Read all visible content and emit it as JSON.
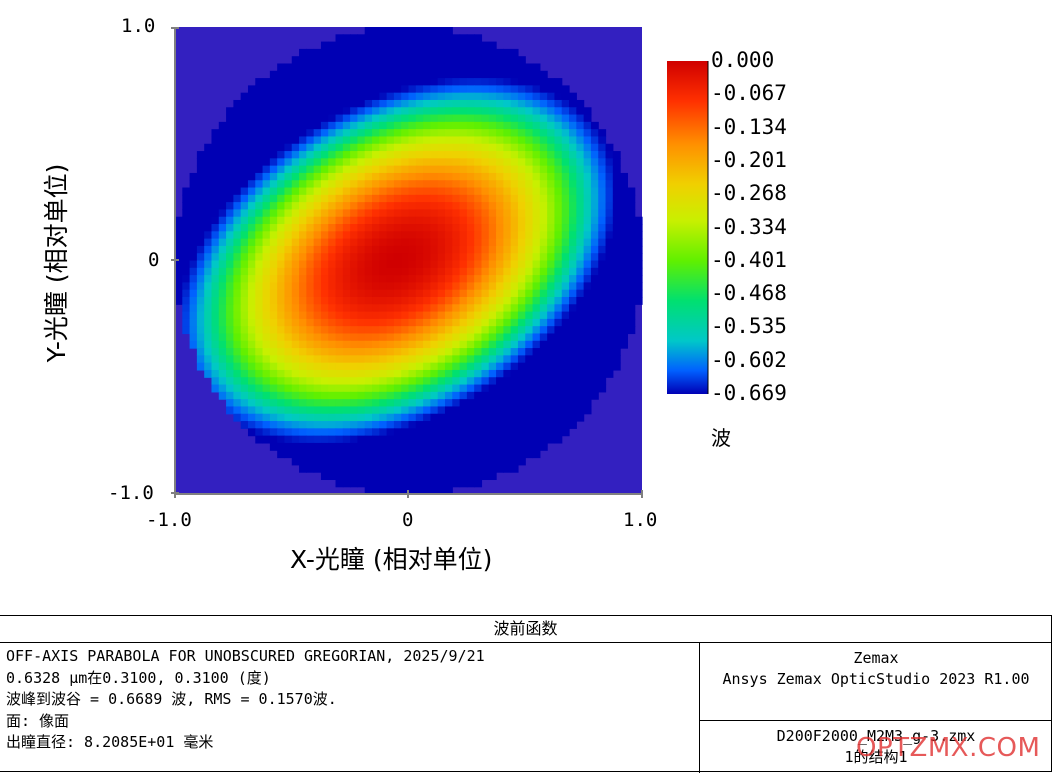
{
  "chart_data": {
    "type": "heatmap",
    "title": "波前函数",
    "xlabel": "X-光瞳 (相对单位)",
    "ylabel": "Y-光瞳 (相对单位)",
    "xlim": [
      -1.0,
      1.0
    ],
    "ylim": [
      -1.0,
      1.0
    ],
    "x_tick_labels": [
      "-1.0",
      "0",
      "1.0"
    ],
    "y_tick_labels": [
      "1.0",
      "0",
      "-1.0"
    ],
    "colorbar_unit": "波",
    "colorbar_labels": [
      "0.000",
      "-0.067",
      "-0.134",
      "-0.201",
      "-0.268",
      "-0.334",
      "-0.401",
      "-0.468",
      "-0.535",
      "-0.602",
      "-0.669"
    ],
    "value_range": [
      -0.669,
      0.0
    ],
    "peak_to_valley_waves": 0.6689,
    "rms_waves": 0.157,
    "pupil_shape": "circular",
    "background_color": "#3320c0",
    "colormap": [
      "#0000b4",
      "#0060ff",
      "#00c8c8",
      "#00e070",
      "#60f000",
      "#c8f000",
      "#f0d000",
      "#ff9000",
      "#ff3000",
      "#d00000"
    ]
  },
  "info": {
    "title": "波前函数",
    "left_lines": [
      "OFF-AXIS PARABOLA FOR UNOBSCURED GREGORIAN, 2025/9/21",
      "0.6328 µm在0.3100, 0.3100 (度)",
      "波峰到波谷 = 0.6689 波, RMS = 0.1570波.",
      "面: 像面",
      "出瞳直径: 8.2085E+01 毫米"
    ],
    "right_top_1": "Zemax",
    "right_top_2": "Ansys Zemax OpticStudio 2023 R1.00",
    "right_bottom_1": "D200F2000_M2M3_g-3.zmx",
    "right_bottom_2": "1的结构1"
  },
  "watermark": "OPTZMX.COM"
}
